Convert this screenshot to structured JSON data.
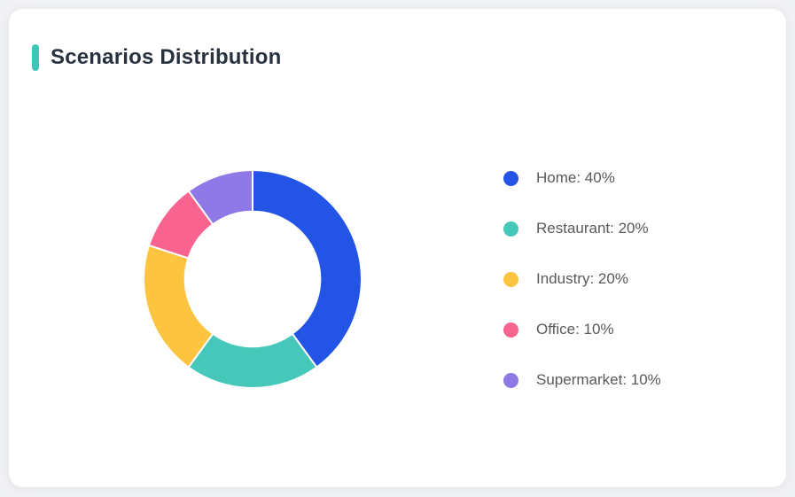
{
  "page": {
    "background_color": "#f0f1f4"
  },
  "card": {
    "title": "Scenarios Distribution",
    "accent_color": "#3ec6b8",
    "background_color": "#ffffff",
    "title_color": "#28323f"
  },
  "legend": {
    "text_color": "#58595d"
  },
  "chart_data": {
    "type": "pie",
    "variant": "donut",
    "title": "Scenarios Distribution",
    "categories": [
      "Home",
      "Restaurant",
      "Industry",
      "Office",
      "Supermarket"
    ],
    "values": [
      40,
      20,
      20,
      10,
      10
    ],
    "unit": "%",
    "colors": [
      "#2354e6",
      "#45c8ba",
      "#fdc53f",
      "#f9638f",
      "#8e79e6"
    ],
    "start_angle_deg": 0,
    "clockwise": true,
    "inner_radius_ratio": 0.62,
    "slice_gap_color": "#ffffff",
    "legend_position": "right",
    "legend_labels": [
      "Home: 40%",
      "Restaurant: 20%",
      "Industry: 20%",
      "Office: 10%",
      "Supermarket: 10%"
    ]
  }
}
